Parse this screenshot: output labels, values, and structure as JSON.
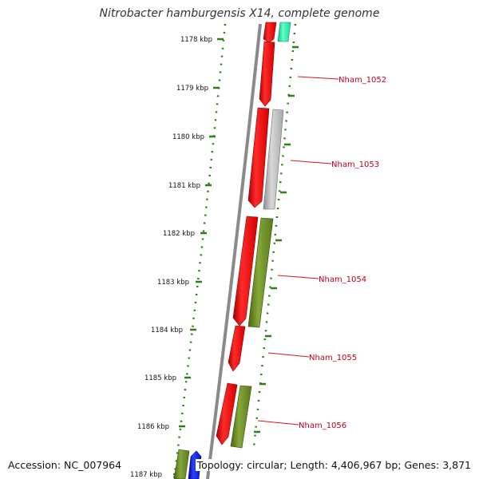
{
  "title": "Nitrobacter hamburgensis X14, complete genome",
  "footer": {
    "accession_label": "Accession:",
    "accession": "NC_007964",
    "topology_label": "Topology:",
    "topology": "circular",
    "length_label": "Length:",
    "length": "4,406,967 bp",
    "genes_label": "Genes:",
    "genes": "3,871"
  },
  "ruler_labels": [
    "1178 kbp",
    "1179 kbp",
    "1180 kbp",
    "1181 kbp",
    "1182 kbp",
    "1183 kbp",
    "1184 kbp",
    "1185 kbp",
    "1186 kbp",
    "1187 kbp"
  ],
  "gene_labels": [
    "Nham_1052",
    "Nham_1053",
    "Nham_1054",
    "Nham_1055",
    "Nham_1056"
  ],
  "colors": {
    "backbone": "#8a8a8a",
    "ruler": "#2e7d16",
    "cds_red": "#ff1a1a",
    "cds_grey": "#bdbdbd",
    "cds_olive": "#6b8e23",
    "cds_teal": "#33f0b0",
    "cds_blue": "#0a1cff",
    "label_text": "#c0001a",
    "leader": "#e01020"
  }
}
